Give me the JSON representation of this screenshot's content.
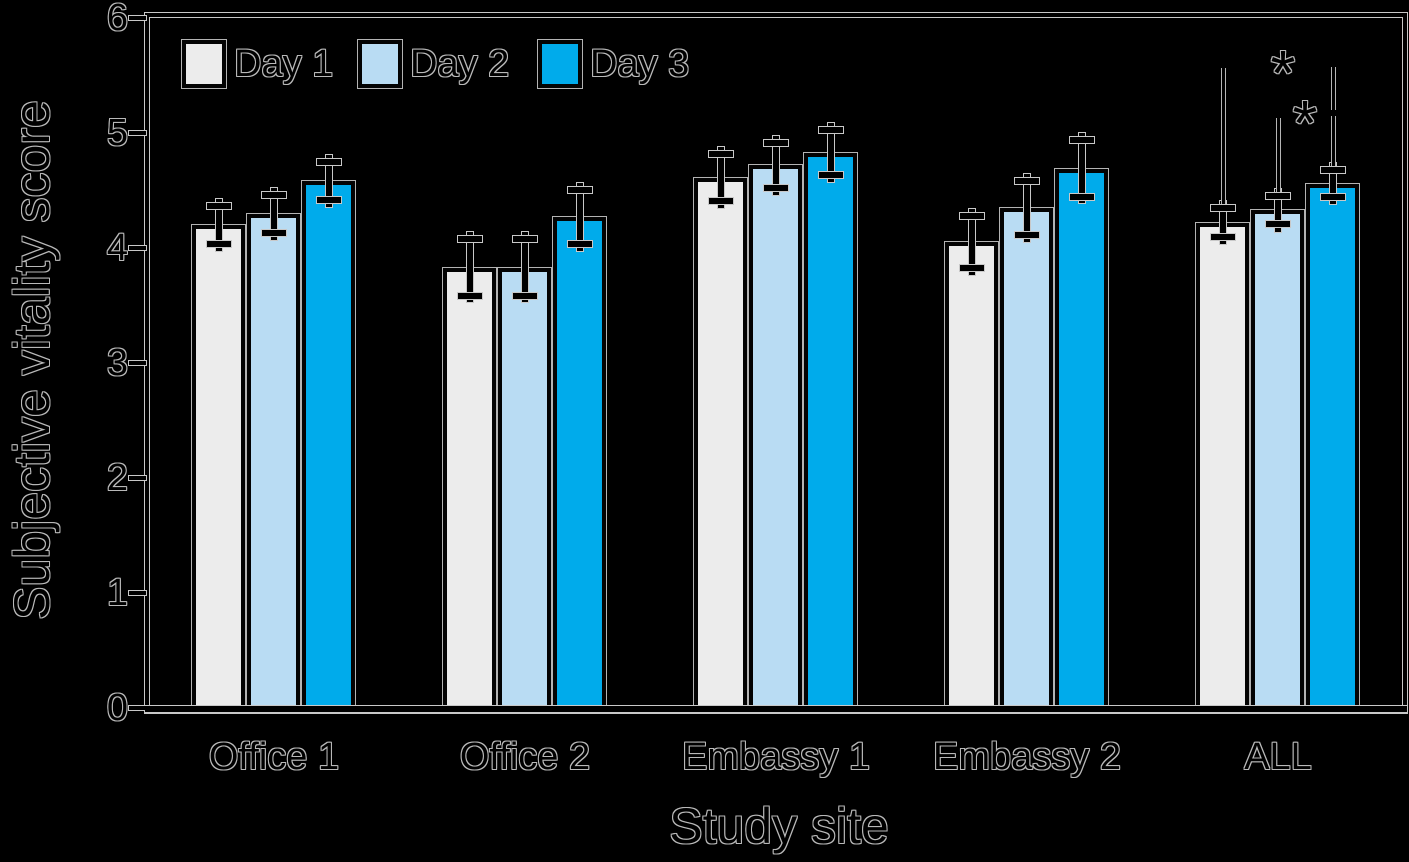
{
  "chart_data": {
    "type": "bar",
    "title": "",
    "xlabel": "Study site",
    "ylabel": "Subjective vitality score",
    "ylim": [
      0,
      6
    ],
    "yticks": [
      0,
      1,
      2,
      3,
      4,
      5,
      6
    ],
    "categories": [
      "Office 1",
      "Office 2",
      "Embassy 1",
      "Embassy 2",
      "ALL"
    ],
    "series": [
      {
        "name": "Day 1",
        "color": "#ececec",
        "values": [
          4.2,
          3.83,
          4.61,
          4.05,
          4.22
        ],
        "errors": [
          0.2,
          0.28,
          0.24,
          0.26,
          0.16
        ]
      },
      {
        "name": "Day 2",
        "color": "#b9dcf3",
        "values": [
          4.3,
          3.83,
          4.72,
          4.35,
          4.33
        ],
        "errors": [
          0.2,
          0.28,
          0.23,
          0.27,
          0.16
        ]
      },
      {
        "name": "Day 3",
        "color": "#00abeb",
        "values": [
          4.58,
          4.27,
          4.83,
          4.69,
          4.56
        ],
        "errors": [
          0.2,
          0.27,
          0.23,
          0.28,
          0.15
        ]
      }
    ],
    "legend": {
      "position": "top-left-inside",
      "labels": [
        "Day 1",
        "Day 2",
        "Day 3"
      ]
    },
    "grid": false,
    "error_bars": true,
    "background": "#000000",
    "annotations": [
      {
        "symbol": "*",
        "category": "ALL",
        "between": [
          "Day 1",
          "Day 3"
        ]
      },
      {
        "symbol": "*",
        "category": "ALL",
        "between": [
          "Day 2",
          "Day 3"
        ]
      }
    ]
  }
}
